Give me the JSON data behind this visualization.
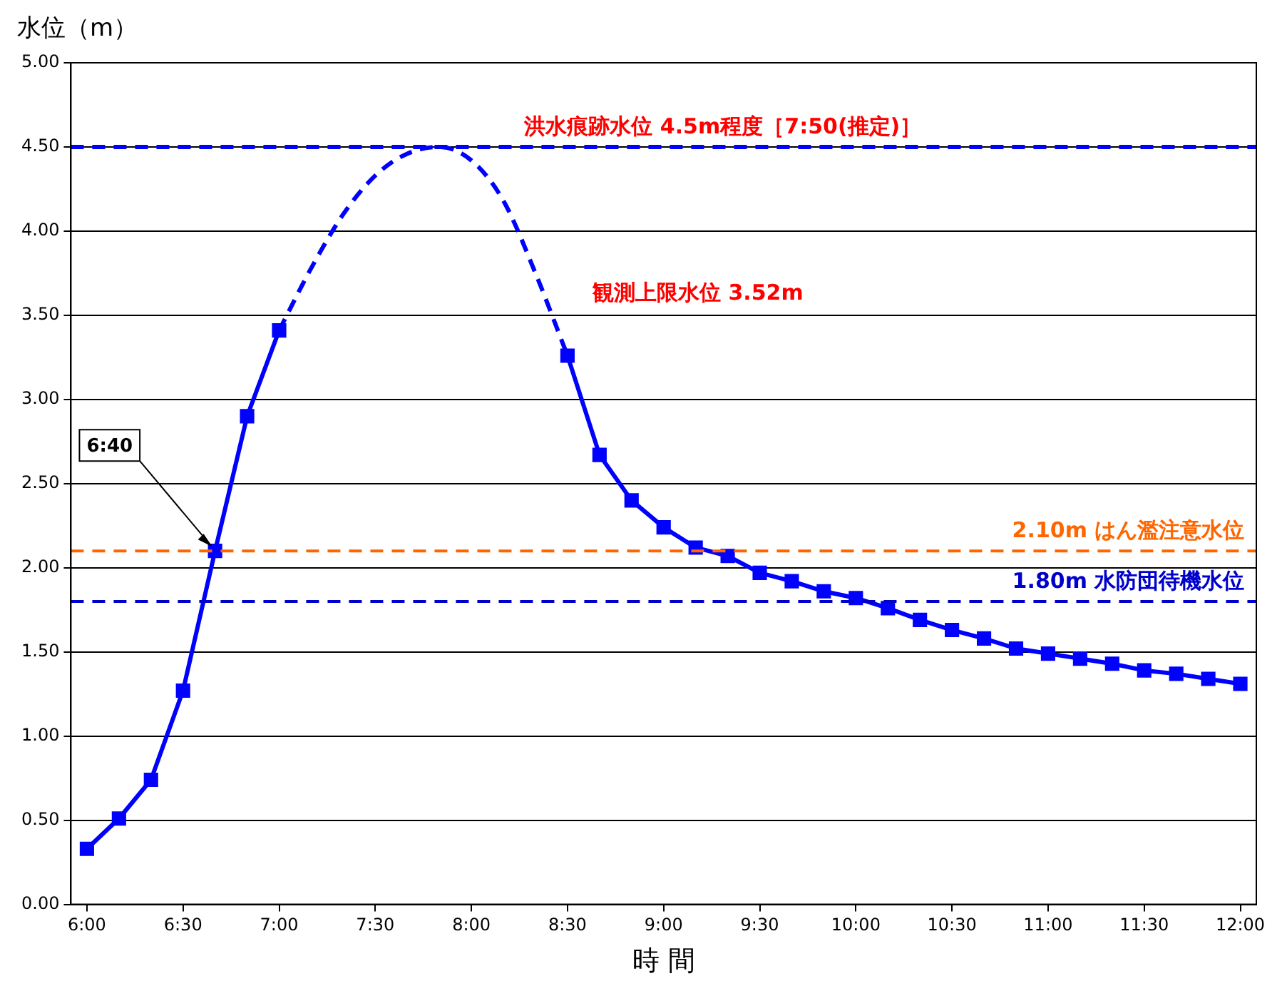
{
  "chart_data": {
    "type": "line",
    "xlabel": "時 間",
    "ylabel": "水位（m）",
    "xlim": [
      5.9167,
      12.0833
    ],
    "xticks": [
      {
        "value": 6,
        "label": "6:00"
      },
      {
        "value": 6.5,
        "label": "6:30"
      },
      {
        "value": 7,
        "label": "7:00"
      },
      {
        "value": 7.5,
        "label": "7:30"
      },
      {
        "value": 8,
        "label": "8:00"
      },
      {
        "value": 8.5,
        "label": "8:30"
      },
      {
        "value": 9,
        "label": "9:00"
      },
      {
        "value": 9.5,
        "label": "9:30"
      },
      {
        "value": 10,
        "label": "10:00"
      },
      {
        "value": 10.5,
        "label": "10:30"
      },
      {
        "value": 11,
        "label": "11:00"
      },
      {
        "value": 11.5,
        "label": "11:30"
      },
      {
        "value": 12,
        "label": "12:00"
      }
    ],
    "ylim": [
      0,
      5
    ],
    "yticks": [
      {
        "value": 0,
        "label": "0.00"
      },
      {
        "value": 0.5,
        "label": "0.50"
      },
      {
        "value": 1,
        "label": "1.00"
      },
      {
        "value": 1.5,
        "label": "1.50"
      },
      {
        "value": 2,
        "label": "2.00"
      },
      {
        "value": 2.5,
        "label": "2.50"
      },
      {
        "value": 3,
        "label": "3.00"
      },
      {
        "value": 3.5,
        "label": "3.50"
      },
      {
        "value": 4,
        "label": "4.00"
      },
      {
        "value": 4.5,
        "label": "4.50"
      },
      {
        "value": 5,
        "label": "5.00"
      }
    ],
    "grid": "y",
    "legend": false,
    "series": [
      {
        "color": "#0000ff",
        "marker": "square",
        "line_style": "solid",
        "x": [
          6,
          6.1667,
          6.3333,
          6.5,
          6.6667,
          6.8333,
          7,
          7.1667,
          7.3333,
          7.5,
          7.6667,
          7.8333,
          8,
          8.1667,
          8.3333,
          8.5,
          8.6667,
          8.8333,
          9,
          9.1667,
          9.3333,
          9.5,
          9.6667,
          9.8333,
          10,
          10.1667,
          10.3333,
          10.5,
          10.6667,
          10.8333,
          11,
          11.1667,
          11.3333,
          11.5,
          11.6667,
          11.8333,
          12
        ],
        "values": [
          0.33,
          0.51,
          0.74,
          1.27,
          2.1,
          2.9,
          3.41,
          null,
          null,
          null,
          null,
          null,
          null,
          null,
          null,
          3.26,
          2.67,
          2.4,
          2.24,
          2.12,
          2.07,
          1.97,
          1.92,
          1.86,
          1.82,
          1.76,
          1.69,
          1.63,
          1.58,
          1.52,
          1.49,
          1.46,
          1.43,
          1.39,
          1.37,
          1.34,
          1.31
        ]
      },
      {
        "color": "#0000ff",
        "marker": "none",
        "line_style": "dashed",
        "x": [
          7,
          7.1667,
          7.3333,
          7.5,
          7.6667,
          7.8333,
          8,
          8.1667,
          8.3333,
          8.5
        ],
        "values": [
          3.41,
          3.78,
          4.1,
          4.33,
          4.46,
          4.5,
          4.42,
          4.18,
          3.75,
          3.26
        ]
      }
    ],
    "ref_lines": [
      {
        "axis": "y",
        "value": 4.5,
        "label": "洪水痕跡水位 4.5m程度［7:50(推定)］",
        "color": "#0000ff",
        "line_style": "dashed"
      },
      {
        "axis": "y",
        "value": 2.1,
        "label": "2.10m はん濫注意水位",
        "color": "#ff6600",
        "line_style": "dashed"
      },
      {
        "axis": "y",
        "value": 1.8,
        "label": "1.80m 水防団待機水位",
        "color": "#0000cc",
        "line_style": "dashed"
      }
    ],
    "annotations": [
      "観測上限水位 3.52m",
      {
        "text": "6:40",
        "x": 6.6667,
        "y": 2.1
      }
    ]
  }
}
